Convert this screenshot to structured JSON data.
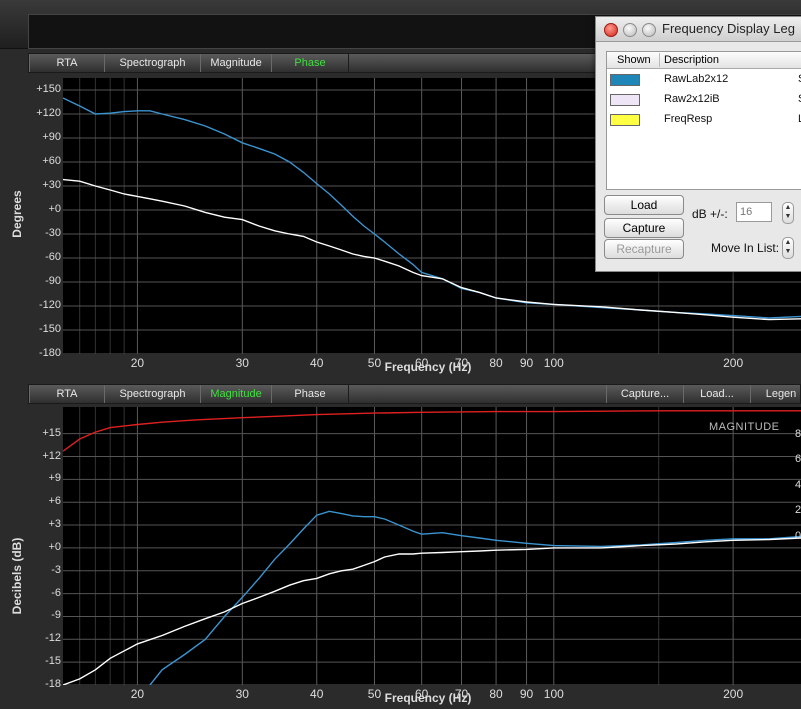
{
  "top_plot": {
    "tabs": [
      {
        "label": "RTA",
        "active": false
      },
      {
        "label": "Spectrograph",
        "active": false
      },
      {
        "label": "Magnitude",
        "active": false
      },
      {
        "label": "Phase",
        "active": true
      }
    ],
    "y_title": "Degrees",
    "x_title": "Frequency (Hz)",
    "y_ticks": [
      "+150",
      "+120",
      "+90",
      "+60",
      "+30",
      "+0",
      "-30",
      "-60",
      "-90",
      "-120",
      "-150",
      "-180"
    ],
    "x_ticks": [
      "20",
      "30",
      "40",
      "50",
      "60",
      "70",
      "80",
      "90",
      "100",
      "200"
    ]
  },
  "bottom_plot": {
    "tabs": [
      {
        "label": "RTA",
        "active": false
      },
      {
        "label": "Spectrograph",
        "active": false
      },
      {
        "label": "Magnitude",
        "active": true
      },
      {
        "label": "Phase",
        "active": false
      }
    ],
    "right_buttons": [
      "Capture...",
      "Load...",
      "Legen"
    ],
    "overlay_label": "MAGNITUDE",
    "y_title": "Decibels (dB)",
    "x_title": "Frequency (Hz)",
    "y_ticks": [
      "+15",
      "+12",
      "+9",
      "+6",
      "+3",
      "+0",
      "-3",
      "-6",
      "-9",
      "-12",
      "-15",
      "-18"
    ],
    "x_ticks": [
      "20",
      "30",
      "40",
      "50",
      "60",
      "70",
      "80",
      "90",
      "100",
      "200"
    ],
    "right_ticks": [
      "8",
      "6",
      "4",
      "2",
      "0"
    ]
  },
  "legend_window": {
    "title": "Frequency Display Leg",
    "col_shown": "Shown",
    "col_description": "Description",
    "rows": [
      {
        "description": "RawLab2x12",
        "color": "#1f86b8",
        "tail": "S"
      },
      {
        "description": "Raw2x12iB",
        "color": "#eee6f6",
        "tail": "S"
      },
      {
        "description": "FreqResp",
        "color": "#ffff44",
        "tail": "L"
      }
    ],
    "buttons": {
      "load": "Load",
      "capture": "Capture",
      "recapture": "Recapture"
    },
    "db_label": "dB +/-:",
    "db_value": "16",
    "move_label": "Move In List:"
  },
  "chart_data": [
    {
      "type": "line",
      "ylabel": "Degrees",
      "xlabel": "Frequency (Hz)",
      "x_scale": "log",
      "xlim": [
        15,
        260
      ],
      "ylim": [
        -180,
        165
      ],
      "series": [
        {
          "name": "RawLab2x12",
          "color": "#3b94d0",
          "x": [
            15,
            16,
            17,
            18,
            19,
            20,
            21,
            22,
            24,
            26,
            28,
            30,
            32,
            34,
            36,
            38,
            40,
            42,
            44,
            46,
            48,
            50,
            52,
            55,
            58,
            60,
            65,
            70,
            75,
            80,
            90,
            100,
            120,
            140,
            160,
            180,
            200,
            230,
            260
          ],
          "y": [
            140,
            130,
            120,
            121,
            123,
            124,
            124,
            120,
            113,
            105,
            95,
            84,
            77,
            70,
            60,
            47,
            33,
            20,
            6,
            -8,
            -20,
            -30,
            -40,
            -55,
            -68,
            -78,
            -86,
            -98,
            -103,
            -110,
            -116,
            -118,
            -122,
            -125,
            -128,
            -130,
            -132,
            -135,
            -133
          ]
        },
        {
          "name": "Raw2x12iB",
          "color": "#ffffff",
          "x": [
            15,
            16,
            17,
            18,
            19,
            20,
            21,
            22,
            24,
            26,
            28,
            30,
            32,
            34,
            36,
            38,
            40,
            42,
            44,
            46,
            48,
            50,
            52,
            55,
            58,
            60,
            65,
            70,
            75,
            80,
            90,
            100,
            120,
            140,
            160,
            180,
            200,
            230,
            260
          ],
          "y": [
            38,
            36,
            30,
            25,
            20,
            17,
            14,
            11,
            5,
            -3,
            -9,
            -12,
            -20,
            -26,
            -30,
            -33,
            -40,
            -45,
            -50,
            -55,
            -58,
            -60,
            -64,
            -70,
            -78,
            -82,
            -86,
            -97,
            -103,
            -110,
            -115,
            -118,
            -121,
            -125,
            -128,
            -131,
            -134,
            -137,
            -136
          ]
        }
      ]
    },
    {
      "type": "line",
      "ylabel": "Decibels (dB)",
      "xlabel": "Frequency (Hz)",
      "x_scale": "log",
      "xlim": [
        15,
        260
      ],
      "ylim": [
        -18,
        18.5
      ],
      "series": [
        {
          "name": "FreqResp",
          "color": "#e02020",
          "x": [
            15,
            16,
            17,
            18,
            20,
            22,
            25,
            30,
            35,
            40,
            50,
            60,
            80,
            100,
            150,
            200,
            260
          ],
          "y": [
            12.7,
            14.3,
            15.2,
            15.8,
            16.2,
            16.5,
            16.8,
            17.1,
            17.3,
            17.5,
            17.7,
            17.8,
            17.9,
            17.9,
            18,
            18,
            18
          ]
        },
        {
          "name": "RawLab2x12",
          "color": "#3b94d0",
          "x": [
            20,
            21,
            22,
            24,
            26,
            28,
            30,
            32,
            34,
            36,
            38,
            40,
            42,
            44,
            46,
            48,
            50,
            52,
            55,
            58,
            60,
            65,
            70,
            75,
            80,
            90,
            100,
            120,
            140,
            160,
            180,
            200,
            230,
            260
          ],
          "y": [
            -20,
            -18,
            -16,
            -14,
            -12,
            -9,
            -6.5,
            -4,
            -1.5,
            0.5,
            2.5,
            4.3,
            4.8,
            4.5,
            4.2,
            4.1,
            4.1,
            3.8,
            3,
            2.2,
            1.8,
            2,
            1.6,
            1.3,
            1,
            0.6,
            0.3,
            0.2,
            0.4,
            0.7,
            1,
            1.2,
            1.2,
            1.5
          ]
        },
        {
          "name": "Raw2x12iB",
          "color": "#ffffff",
          "x": [
            15,
            16,
            17,
            18,
            20,
            22,
            24,
            26,
            28,
            30,
            32,
            34,
            36,
            38,
            40,
            42,
            44,
            46,
            48,
            50,
            52,
            55,
            58,
            60,
            65,
            70,
            75,
            80,
            90,
            100,
            120,
            140,
            160,
            180,
            200,
            230,
            260
          ],
          "y": [
            -18,
            -17.2,
            -16,
            -14.5,
            -12.6,
            -11.5,
            -10.3,
            -9.3,
            -8.4,
            -7.3,
            -6.5,
            -5.7,
            -4.9,
            -4.3,
            -4,
            -3.4,
            -3,
            -2.8,
            -2.3,
            -1.8,
            -1.2,
            -0.8,
            -0.8,
            -0.7,
            -0.6,
            -0.5,
            -0.4,
            -0.3,
            -0.2,
            0,
            0,
            0.3,
            0.5,
            0.8,
            1,
            1.1,
            1.3
          ]
        }
      ]
    }
  ]
}
